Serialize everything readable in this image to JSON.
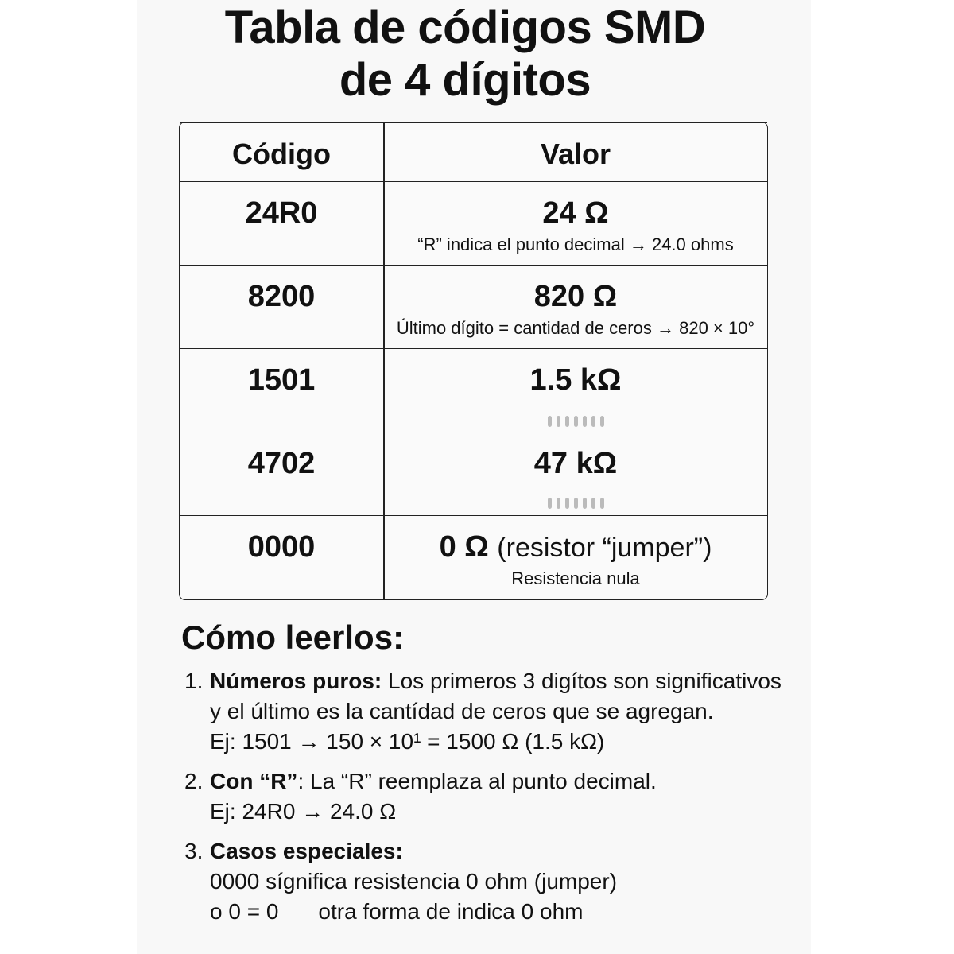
{
  "title": {
    "line1": "Tabla de códigos SMD",
    "line2": "de 4 dígitos"
  },
  "table": {
    "headers": {
      "code": "Código",
      "value": "Valor"
    },
    "rows": [
      {
        "code": "24R0",
        "value": "24 Ω",
        "note": "“R” indica el punto decimal → 24.0 ohms"
      },
      {
        "code": "8200",
        "value": "820 Ω",
        "note": "Último dígito = cantidad de ceros → 820 × 10°"
      },
      {
        "code": "1501",
        "value": "1.5 kΩ",
        "note": ""
      },
      {
        "code": "4702",
        "value": "47 kΩ",
        "note": ""
      },
      {
        "code": "0000",
        "value": "0 Ω",
        "value_extra": "(resistor “jumper”)",
        "note": "Resistencia nula"
      }
    ]
  },
  "howto": {
    "heading": "Cómo leerlos:",
    "items": [
      {
        "num": "1.",
        "label": "Números puros:",
        "text": " Los primeros 3 digítos son significativos y el último es la cantídad de ceros que se agregan.",
        "example": "Ej: 1501 → 150 × 10¹ = 1500 Ω (1.5 kΩ)"
      },
      {
        "num": "2.",
        "label": "Con “R”",
        "text": ": La “R” reemplaza al punto decimal.",
        "example": "Ej: 24R0 → 24.0 Ω"
      },
      {
        "num": "3.",
        "label": "Casos especiales:",
        "line1": "0000 sígnifica resistencia 0 ohm (jumper)",
        "line2a": "o 0 = 0",
        "line2b": "otra forma de indica 0 ohm"
      }
    ]
  }
}
